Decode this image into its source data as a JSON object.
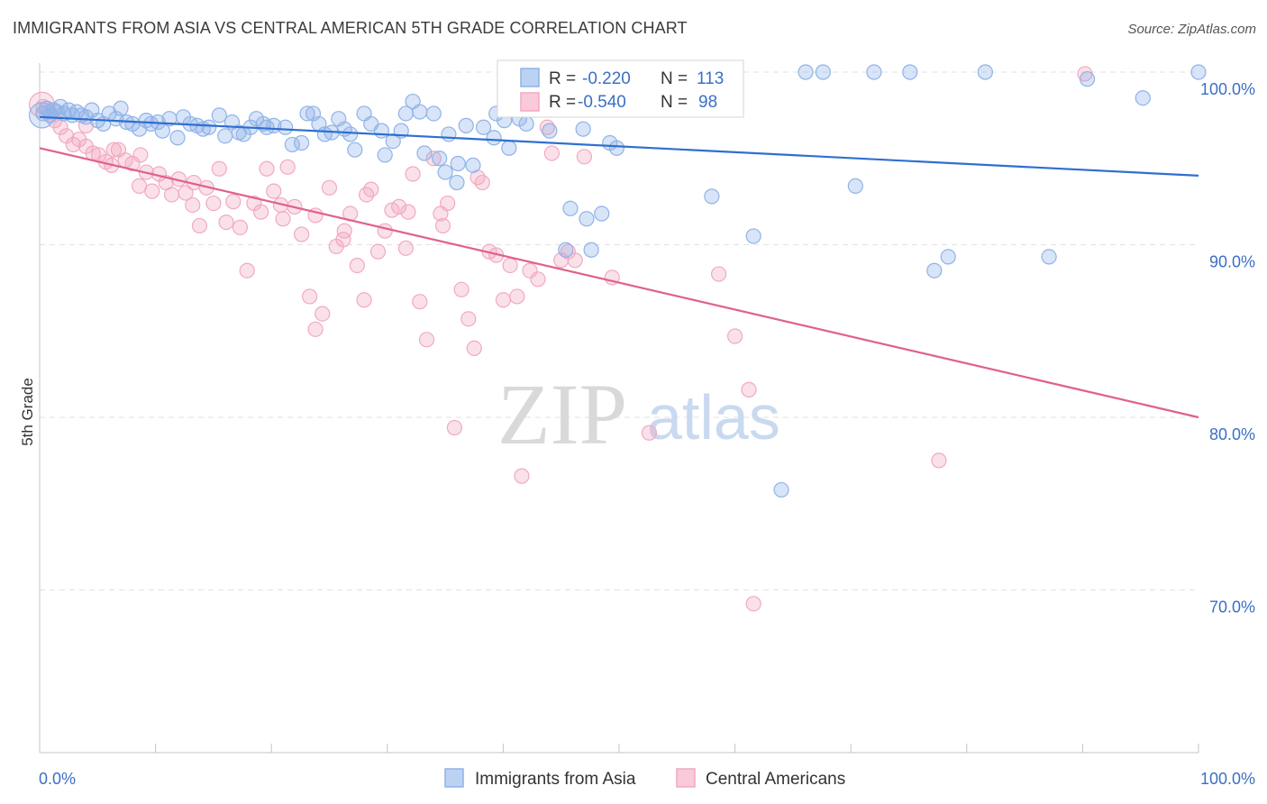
{
  "header": {
    "title": "IMMIGRANTS FROM ASIA VS CENTRAL AMERICAN 5TH GRADE CORRELATION CHART",
    "source": "Source: ZipAtlas.com"
  },
  "watermark": {
    "zip": "ZIP",
    "atlas": "atlas"
  },
  "legend_top": [
    {
      "r_label": "R =",
      "r_value": "-0.220",
      "n_label": "N =",
      "n_value": "113"
    },
    {
      "r_label": "R =",
      "r_value": "-0.540",
      "n_label": "N =",
      "n_value": "98"
    }
  ],
  "legend_bottom": [
    "Immigrants from Asia",
    "Central Americans"
  ],
  "chart_data": {
    "type": "scatter",
    "title": "IMMIGRANTS FROM ASIA VS CENTRAL AMERICAN 5TH GRADE CORRELATION CHART",
    "xlabel": "",
    "ylabel": "5th Grade",
    "xlim": [
      0,
      100
    ],
    "ylim": [
      62,
      100
    ],
    "x_tick_labels": [
      "0.0%",
      "100.0%"
    ],
    "y_ticks": [
      70,
      80,
      90,
      100
    ],
    "y_tick_labels": [
      "70.0%",
      "80.0%",
      "90.0%",
      "100.0%"
    ],
    "grid": true,
    "legend_position": "top-center",
    "colors": {
      "asia": "#8fb3e8",
      "asia_line": "#2f6fd0",
      "central": "#f2a9c0",
      "central_line": "#e0608e"
    },
    "series": [
      {
        "name": "Immigrants from Asia",
        "r": -0.22,
        "n": 113,
        "trend": {
          "x": [
            0,
            100
          ],
          "y": [
            97.4,
            94.0
          ]
        },
        "points": [
          [
            0.3,
            97.6
          ],
          [
            0.6,
            97.9
          ],
          [
            0.9,
            97.5
          ],
          [
            1.2,
            97.8
          ],
          [
            1.5,
            97.7
          ],
          [
            1.8,
            98.0
          ],
          [
            2.1,
            97.6
          ],
          [
            2.5,
            97.8
          ],
          [
            2.8,
            97.5
          ],
          [
            3.2,
            97.7
          ],
          [
            3.6,
            97.5
          ],
          [
            4.0,
            97.4
          ],
          [
            4.5,
            97.8
          ],
          [
            5.0,
            97.2
          ],
          [
            5.5,
            97.0
          ],
          [
            6.0,
            97.6
          ],
          [
            6.6,
            97.3
          ],
          [
            7.0,
            97.9
          ],
          [
            7.5,
            97.1
          ],
          [
            8.0,
            97.0
          ],
          [
            8.6,
            96.7
          ],
          [
            9.2,
            97.2
          ],
          [
            9.6,
            97.0
          ],
          [
            10.2,
            97.1
          ],
          [
            10.6,
            96.6
          ],
          [
            11.2,
            97.3
          ],
          [
            11.9,
            96.2
          ],
          [
            12.4,
            97.4
          ],
          [
            13.0,
            97.0
          ],
          [
            13.6,
            96.9
          ],
          [
            14.1,
            96.7
          ],
          [
            14.6,
            96.8
          ],
          [
            15.5,
            97.5
          ],
          [
            16.0,
            96.3
          ],
          [
            16.6,
            97.1
          ],
          [
            17.2,
            96.5
          ],
          [
            17.6,
            96.4
          ],
          [
            18.2,
            96.8
          ],
          [
            18.7,
            97.3
          ],
          [
            19.3,
            97.0
          ],
          [
            19.6,
            96.8
          ],
          [
            20.2,
            96.9
          ],
          [
            21.2,
            96.8
          ],
          [
            21.8,
            95.8
          ],
          [
            22.6,
            95.9
          ],
          [
            23.1,
            97.6
          ],
          [
            23.6,
            97.6
          ],
          [
            24.1,
            97.0
          ],
          [
            24.6,
            96.4
          ],
          [
            25.2,
            96.5
          ],
          [
            25.8,
            97.3
          ],
          [
            26.3,
            96.7
          ],
          [
            26.8,
            96.4
          ],
          [
            27.2,
            95.5
          ],
          [
            28.0,
            97.6
          ],
          [
            28.6,
            97.0
          ],
          [
            29.5,
            96.6
          ],
          [
            29.8,
            95.2
          ],
          [
            30.5,
            96.0
          ],
          [
            31.2,
            96.6
          ],
          [
            31.6,
            97.6
          ],
          [
            32.2,
            98.3
          ],
          [
            32.8,
            97.7
          ],
          [
            33.2,
            95.3
          ],
          [
            34.0,
            97.6
          ],
          [
            34.5,
            95.0
          ],
          [
            35.0,
            94.2
          ],
          [
            35.3,
            96.4
          ],
          [
            36.1,
            94.7
          ],
          [
            36.8,
            96.9
          ],
          [
            37.4,
            94.6
          ],
          [
            38.3,
            96.8
          ],
          [
            39.2,
            96.2
          ],
          [
            39.4,
            97.6
          ],
          [
            40.1,
            97.2
          ],
          [
            40.5,
            95.6
          ],
          [
            41.4,
            97.3
          ],
          [
            42.0,
            97.0
          ],
          [
            42.7,
            98.3
          ],
          [
            43.2,
            99.0
          ],
          [
            44.0,
            96.6
          ],
          [
            44.5,
            98.9
          ],
          [
            45.0,
            99.5
          ],
          [
            45.4,
            89.7
          ],
          [
            45.8,
            92.1
          ],
          [
            46.9,
            96.7
          ],
          [
            47.2,
            91.5
          ],
          [
            47.6,
            89.7
          ],
          [
            48.5,
            91.8
          ],
          [
            49.2,
            95.9
          ],
          [
            49.8,
            95.6
          ],
          [
            50.6,
            99.7
          ],
          [
            51.2,
            98.0
          ],
          [
            51.7,
            99.5
          ],
          [
            52.8,
            99.3
          ],
          [
            53.3,
            100.0
          ],
          [
            53.8,
            100.0
          ],
          [
            54.8,
            99.5
          ],
          [
            55.5,
            99.0
          ],
          [
            56.8,
            100.0
          ],
          [
            57.7,
            100.0
          ],
          [
            58.0,
            92.8
          ],
          [
            61.6,
            90.5
          ],
          [
            64.0,
            75.8
          ],
          [
            66.1,
            100.0
          ],
          [
            67.6,
            100.0
          ],
          [
            70.4,
            93.4
          ],
          [
            72.0,
            100.0
          ],
          [
            75.1,
            100.0
          ],
          [
            77.2,
            88.5
          ],
          [
            78.4,
            89.3
          ],
          [
            81.6,
            100.0
          ],
          [
            87.1,
            89.3
          ],
          [
            90.4,
            99.6
          ],
          [
            95.2,
            98.5
          ],
          [
            100.0,
            100.0
          ],
          [
            36.0,
            93.6
          ]
        ]
      },
      {
        "name": "Central Americans",
        "r": -0.54,
        "n": 98,
        "trend": {
          "x": [
            0,
            100
          ],
          "y": [
            95.6,
            80.0
          ]
        },
        "points": [
          [
            0.3,
            98.0
          ],
          [
            0.8,
            97.7
          ],
          [
            1.3,
            97.2
          ],
          [
            1.8,
            96.8
          ],
          [
            2.3,
            96.3
          ],
          [
            2.9,
            95.8
          ],
          [
            3.4,
            96.1
          ],
          [
            4.0,
            95.7
          ],
          [
            4.6,
            95.3
          ],
          [
            5.1,
            95.2
          ],
          [
            5.7,
            94.8
          ],
          [
            6.2,
            94.6
          ],
          [
            6.8,
            95.5
          ],
          [
            7.4,
            94.9
          ],
          [
            8.0,
            94.7
          ],
          [
            8.6,
            93.4
          ],
          [
            9.2,
            94.2
          ],
          [
            9.7,
            93.1
          ],
          [
            10.3,
            94.1
          ],
          [
            10.9,
            93.6
          ],
          [
            11.4,
            92.9
          ],
          [
            12.0,
            93.8
          ],
          [
            12.6,
            93.0
          ],
          [
            13.2,
            92.3
          ],
          [
            13.8,
            91.1
          ],
          [
            14.4,
            93.3
          ],
          [
            15.0,
            92.4
          ],
          [
            15.5,
            94.4
          ],
          [
            16.1,
            91.3
          ],
          [
            16.7,
            92.5
          ],
          [
            17.3,
            91.0
          ],
          [
            17.9,
            88.5
          ],
          [
            18.5,
            92.4
          ],
          [
            19.1,
            91.9
          ],
          [
            19.6,
            94.4
          ],
          [
            20.2,
            93.1
          ],
          [
            20.8,
            92.3
          ],
          [
            21.4,
            94.5
          ],
          [
            22.0,
            92.2
          ],
          [
            22.6,
            90.6
          ],
          [
            23.3,
            87.0
          ],
          [
            23.8,
            91.7
          ],
          [
            24.4,
            86.0
          ],
          [
            25.0,
            93.3
          ],
          [
            25.6,
            89.9
          ],
          [
            26.2,
            90.3
          ],
          [
            26.8,
            91.8
          ],
          [
            27.4,
            88.8
          ],
          [
            28.0,
            86.8
          ],
          [
            28.6,
            93.2
          ],
          [
            29.2,
            89.6
          ],
          [
            29.8,
            90.8
          ],
          [
            30.4,
            92.0
          ],
          [
            31.0,
            92.2
          ],
          [
            31.6,
            89.8
          ],
          [
            32.2,
            94.1
          ],
          [
            32.8,
            86.7
          ],
          [
            33.4,
            84.5
          ],
          [
            34.0,
            95.0
          ],
          [
            34.6,
            91.8
          ],
          [
            35.2,
            92.4
          ],
          [
            35.8,
            79.4
          ],
          [
            36.4,
            87.4
          ],
          [
            37.0,
            85.7
          ],
          [
            37.5,
            84.0
          ],
          [
            38.2,
            93.6
          ],
          [
            38.8,
            89.6
          ],
          [
            39.4,
            89.4
          ],
          [
            40.0,
            86.8
          ],
          [
            40.6,
            88.8
          ],
          [
            41.2,
            87.0
          ],
          [
            41.6,
            76.6
          ],
          [
            42.3,
            88.5
          ],
          [
            43.0,
            88.0
          ],
          [
            43.8,
            96.8
          ],
          [
            44.2,
            95.3
          ],
          [
            45.0,
            89.1
          ],
          [
            45.6,
            89.6
          ],
          [
            46.2,
            89.1
          ],
          [
            47.0,
            95.1
          ],
          [
            48.0,
            99.9
          ],
          [
            52.6,
            79.1
          ],
          [
            58.6,
            88.3
          ],
          [
            60.0,
            84.7
          ],
          [
            61.2,
            81.6
          ],
          [
            61.6,
            69.2
          ],
          [
            77.6,
            77.5
          ],
          [
            90.2,
            99.9
          ],
          [
            4.0,
            96.9
          ],
          [
            6.4,
            95.5
          ],
          [
            13.3,
            93.6
          ],
          [
            21.0,
            91.5
          ],
          [
            23.8,
            85.1
          ],
          [
            26.3,
            90.8
          ],
          [
            28.2,
            92.9
          ],
          [
            31.8,
            91.9
          ],
          [
            34.8,
            91.1
          ],
          [
            37.8,
            93.9
          ],
          [
            49.4,
            88.1
          ],
          [
            8.7,
            95.2
          ]
        ]
      }
    ]
  }
}
